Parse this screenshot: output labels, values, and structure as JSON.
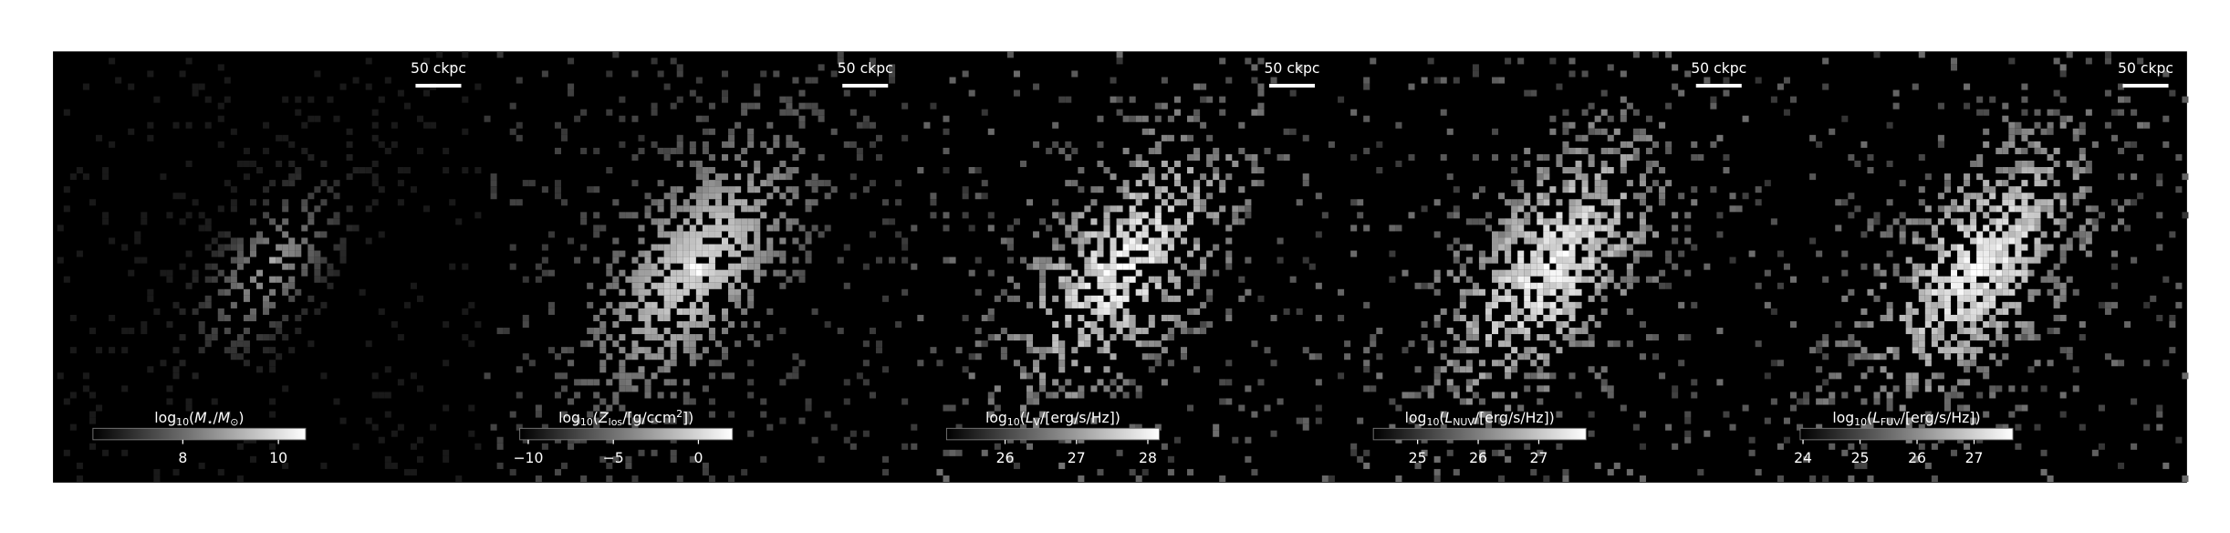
{
  "panels": [
    {
      "scale_bar": "50 ckpc",
      "colorbar": {
        "label": [
          {
            "t": "log"
          },
          {
            "sub": "10"
          },
          {
            "t": "("
          },
          {
            "i": "M"
          },
          {
            "sub": "⋆"
          },
          {
            "t": "/"
          },
          {
            "i": "M"
          },
          {
            "sub": "⊙"
          },
          {
            "t": ")"
          }
        ],
        "lim": [
          6.12,
          10.57
        ],
        "ticks": [
          8,
          10
        ]
      }
    },
    {
      "scale_bar": "50 ckpc",
      "colorbar": {
        "label": [
          {
            "t": "log"
          },
          {
            "sub": "10"
          },
          {
            "t": "("
          },
          {
            "i": "Z"
          },
          {
            "sub": "los"
          },
          {
            "t": "/[g/ccm"
          },
          {
            "sup": "2"
          },
          {
            "t": "])"
          }
        ],
        "lim": [
          -10.5,
          2.0
        ],
        "ticks": [
          {
            "value": -10,
            "label": "−10"
          },
          {
            "value": -5,
            "label": "−5"
          },
          0
        ]
      }
    },
    {
      "scale_bar": "50 ckpc",
      "colorbar": {
        "label": [
          {
            "t": "log"
          },
          {
            "sub": "10"
          },
          {
            "t": "("
          },
          {
            "i": "L"
          },
          {
            "sub": "V"
          },
          {
            "t": "/[erg/s/Hz])"
          }
        ],
        "lim": [
          25.18,
          28.16
        ],
        "ticks": [
          26,
          27,
          28
        ]
      }
    },
    {
      "scale_bar": "50 ckpc",
      "colorbar": {
        "label": [
          {
            "t": "log"
          },
          {
            "sub": "10"
          },
          {
            "t": "("
          },
          {
            "i": "L"
          },
          {
            "sub": "NUV"
          },
          {
            "t": "/[erg/s/Hz])"
          }
        ],
        "lim": [
          24.27,
          27.78
        ],
        "ticks": [
          25,
          26,
          27
        ]
      }
    },
    {
      "scale_bar": "50 ckpc",
      "colorbar": {
        "label": [
          {
            "t": "log"
          },
          {
            "sub": "10"
          },
          {
            "t": "("
          },
          {
            "i": "L"
          },
          {
            "sub": "FUV"
          },
          {
            "t": "/[erg/s/Hz])"
          }
        ],
        "lim": [
          23.95,
          27.68
        ],
        "ticks": [
          24,
          25,
          26,
          27
        ]
      }
    }
  ]
}
